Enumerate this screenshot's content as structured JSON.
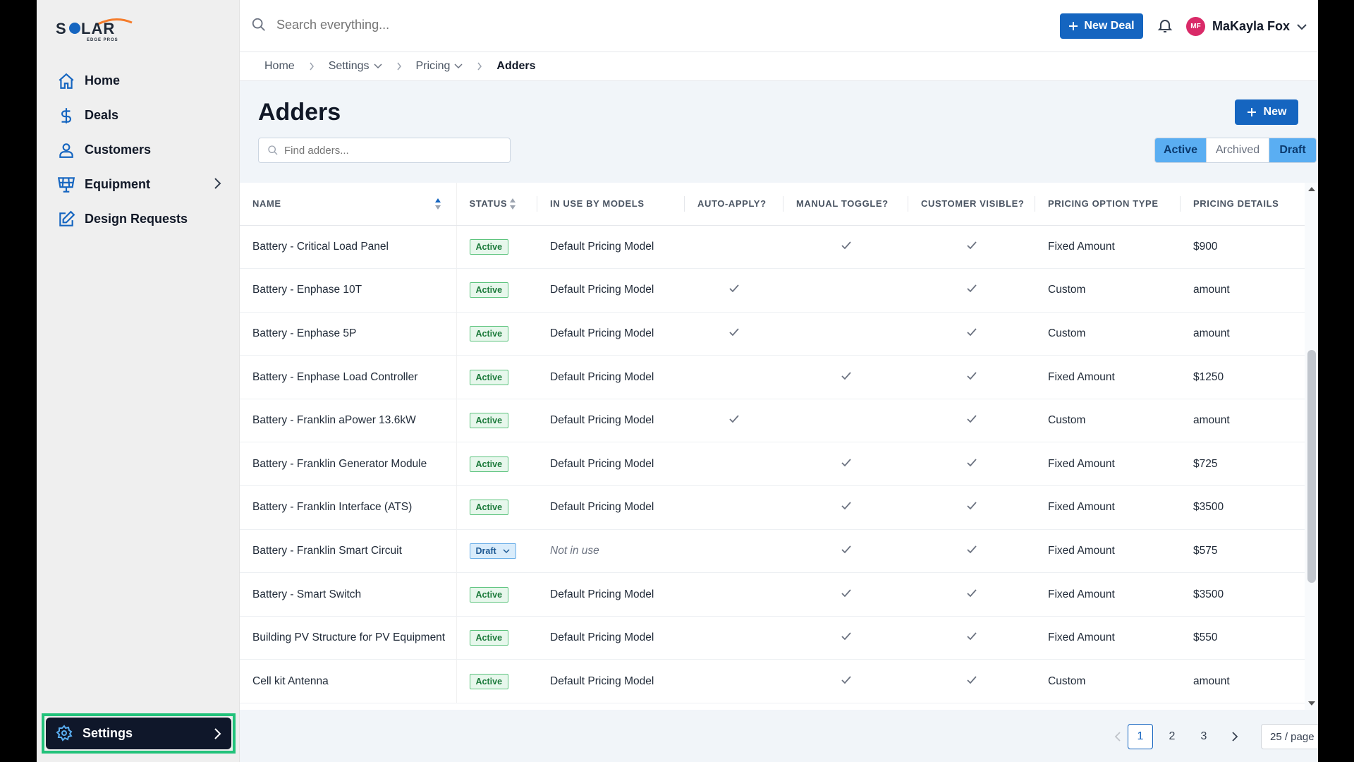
{
  "brand": {
    "logo_text": "SOLAR",
    "logo_sub": "EDGE PROS"
  },
  "sidebar": {
    "items": [
      {
        "label": "Home",
        "icon": "home-icon"
      },
      {
        "label": "Deals",
        "icon": "dollar-icon"
      },
      {
        "label": "Customers",
        "icon": "user-icon"
      },
      {
        "label": "Equipment",
        "icon": "solar-panel-icon"
      },
      {
        "label": "Design Requests",
        "icon": "edit-icon"
      }
    ],
    "settings_label": "Settings"
  },
  "topbar": {
    "search_placeholder": "Search everything...",
    "new_deal_label": "New Deal",
    "user_initials": "MF",
    "user_name": "MaKayla Fox"
  },
  "breadcrumb": {
    "home": "Home",
    "settings": "Settings",
    "pricing": "Pricing",
    "current": "Adders"
  },
  "page": {
    "title": "Adders",
    "new_label": "New",
    "find_placeholder": "Find adders...",
    "filters": [
      "Active",
      "Archived",
      "Draft"
    ]
  },
  "table": {
    "columns": [
      "NAME",
      "STATUS",
      "IN USE BY MODELS",
      "AUTO-APPLY?",
      "MANUAL TOGGLE?",
      "CUSTOMER VISIBLE?",
      "PRICING OPTION TYPE",
      "PRICING DETAILS"
    ],
    "rows": [
      {
        "name": "Battery - Critical Load Panel",
        "status": "Active",
        "models": "Default Pricing Model",
        "auto": false,
        "manual": true,
        "visible": true,
        "type": "Fixed Amount",
        "details": "$900"
      },
      {
        "name": "Battery - Enphase 10T",
        "status": "Active",
        "models": "Default Pricing Model",
        "auto": true,
        "manual": false,
        "visible": true,
        "type": "Custom",
        "details": "amount"
      },
      {
        "name": "Battery - Enphase 5P",
        "status": "Active",
        "models": "Default Pricing Model",
        "auto": true,
        "manual": false,
        "visible": true,
        "type": "Custom",
        "details": "amount"
      },
      {
        "name": "Battery - Enphase Load Controller",
        "status": "Active",
        "models": "Default Pricing Model",
        "auto": false,
        "manual": true,
        "visible": true,
        "type": "Fixed Amount",
        "details": "$1250"
      },
      {
        "name": "Battery - Franklin aPower 13.6kW",
        "status": "Active",
        "models": "Default Pricing Model",
        "auto": true,
        "manual": false,
        "visible": true,
        "type": "Custom",
        "details": "amount"
      },
      {
        "name": "Battery - Franklin Generator Module",
        "status": "Active",
        "models": "Default Pricing Model",
        "auto": false,
        "manual": true,
        "visible": true,
        "type": "Fixed Amount",
        "details": "$725"
      },
      {
        "name": "Battery - Franklin Interface (ATS)",
        "status": "Active",
        "models": "Default Pricing Model",
        "auto": false,
        "manual": true,
        "visible": true,
        "type": "Fixed Amount",
        "details": "$3500"
      },
      {
        "name": "Battery - Franklin Smart Circuit",
        "status": "Draft",
        "models": "Not in use",
        "auto": false,
        "manual": true,
        "visible": true,
        "type": "Fixed Amount",
        "details": "$575"
      },
      {
        "name": "Battery - Smart Switch",
        "status": "Active",
        "models": "Default Pricing Model",
        "auto": false,
        "manual": true,
        "visible": true,
        "type": "Fixed Amount",
        "details": "$3500"
      },
      {
        "name": "Building PV Structure for PV Equipment",
        "status": "Active",
        "models": "Default Pricing Model",
        "auto": false,
        "manual": true,
        "visible": true,
        "type": "Fixed Amount",
        "details": "$550"
      },
      {
        "name": "Cell kit Antenna",
        "status": "Active",
        "models": "Default Pricing Model",
        "auto": false,
        "manual": true,
        "visible": true,
        "type": "Custom",
        "details": "amount"
      }
    ]
  },
  "pagination": {
    "pages": [
      "1",
      "2",
      "3"
    ],
    "current": "1",
    "page_size": "25 / page"
  },
  "colors": {
    "primary": "#1565c0",
    "active_badge": "#5cc37d",
    "draft_badge": "#6aaee8",
    "highlight": "#22c27a",
    "avatar": "#d92a68"
  }
}
